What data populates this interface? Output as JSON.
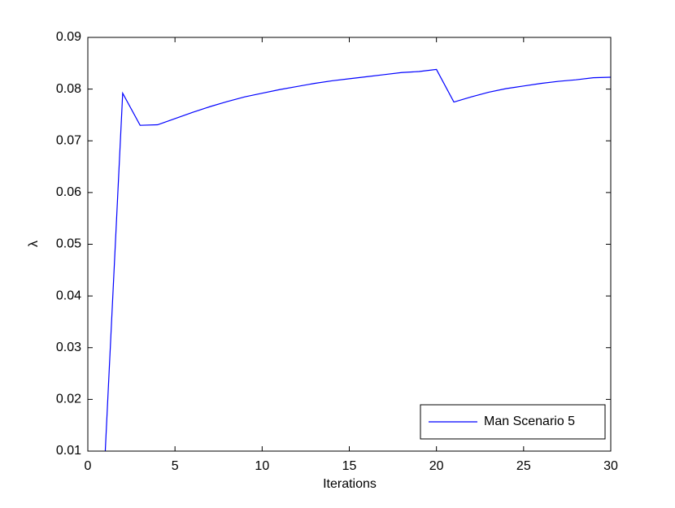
{
  "chart_data": {
    "type": "line",
    "x_label": "Iterations",
    "y_label": "λ",
    "x": [
      1,
      2,
      3,
      4,
      5,
      6,
      7,
      8,
      9,
      10,
      11,
      12,
      13,
      14,
      15,
      16,
      17,
      18,
      19,
      20,
      21,
      22,
      23,
      24,
      25,
      26,
      27,
      28,
      29,
      30
    ],
    "series": [
      {
        "name": "Man Scenario 5",
        "color": "#0000ff",
        "values": [
          0.01,
          0.0792,
          0.073,
          0.0731,
          0.0743,
          0.0755,
          0.0766,
          0.0776,
          0.0785,
          0.0792,
          0.0799,
          0.0805,
          0.0811,
          0.0816,
          0.082,
          0.0824,
          0.0828,
          0.0832,
          0.0834,
          0.0838,
          0.0775,
          0.0785,
          0.0794,
          0.0801,
          0.0806,
          0.0811,
          0.0815,
          0.0818,
          0.0822,
          0.0823
        ]
      }
    ],
    "xlim": [
      0,
      30
    ],
    "xticks": [
      0,
      5,
      10,
      15,
      20,
      25,
      30
    ],
    "ylim": [
      0.01,
      0.09
    ],
    "yticks": [
      0.01,
      0.02,
      0.03,
      0.04,
      0.05,
      0.06,
      0.07,
      0.08,
      0.09
    ],
    "legend": "lower right",
    "grid": false
  }
}
